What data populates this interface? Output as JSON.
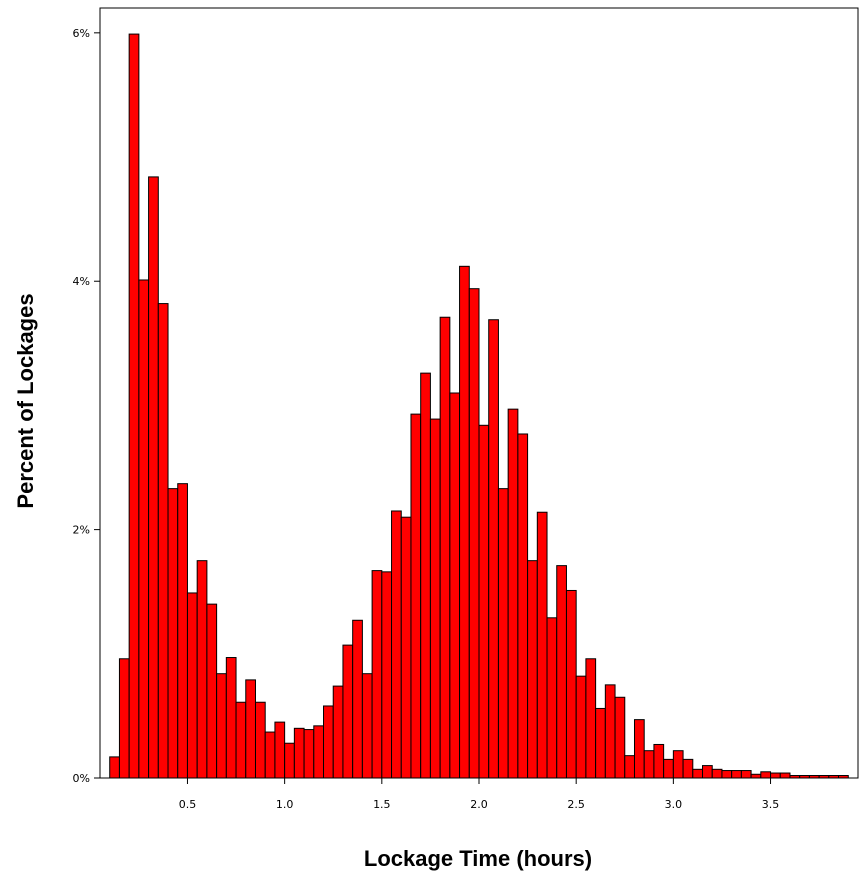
{
  "colors": {
    "bar_fill": "#ff0000",
    "bar_stroke": "#000000",
    "axis": "#000000",
    "background": "#ffffff"
  },
  "chart_data": {
    "type": "bar",
    "subtype": "histogram",
    "title": "",
    "xlabel": "Lockage Time (hours)",
    "ylabel": "Percent of Lockages",
    "xlim": [
      0.05,
      3.95
    ],
    "ylim": [
      0,
      6.2
    ],
    "grid": false,
    "legend": "none",
    "bin_width": 0.05,
    "x_ticks": [
      {
        "value": 0.5,
        "label": "0.5"
      },
      {
        "value": 1.0,
        "label": "1.0"
      },
      {
        "value": 1.5,
        "label": "1.5"
      },
      {
        "value": 2.0,
        "label": "2.0"
      },
      {
        "value": 2.5,
        "label": "2.5"
      },
      {
        "value": 3.0,
        "label": "3.0"
      },
      {
        "value": 3.5,
        "label": "3.5"
      }
    ],
    "y_ticks": [
      {
        "value": 0,
        "label": "0%"
      },
      {
        "value": 2,
        "label": "2%"
      },
      {
        "value": 4,
        "label": "4%"
      },
      {
        "value": 6,
        "label": "6%"
      }
    ],
    "bin_starts": [
      0.1,
      0.15,
      0.2,
      0.25,
      0.3,
      0.35,
      0.4,
      0.45,
      0.5,
      0.55,
      0.6,
      0.65,
      0.7,
      0.75,
      0.8,
      0.85,
      0.9,
      0.95,
      1.0,
      1.05,
      1.1,
      1.15,
      1.2,
      1.25,
      1.3,
      1.35,
      1.4,
      1.45,
      1.5,
      1.55,
      1.6,
      1.65,
      1.7,
      1.75,
      1.8,
      1.85,
      1.9,
      1.95,
      2.0,
      2.05,
      2.1,
      2.15,
      2.2,
      2.25,
      2.3,
      2.35,
      2.4,
      2.45,
      2.5,
      2.55,
      2.6,
      2.65,
      2.7,
      2.75,
      2.8,
      2.85,
      2.9,
      2.95,
      3.0,
      3.05,
      3.1,
      3.15,
      3.2,
      3.25,
      3.3,
      3.35,
      3.4,
      3.45,
      3.5,
      3.55,
      3.6,
      3.65,
      3.7,
      3.75,
      3.8,
      3.85
    ],
    "values": [
      0.17,
      0.96,
      5.99,
      4.01,
      4.84,
      3.82,
      2.33,
      2.37,
      1.49,
      1.75,
      1.4,
      0.84,
      0.97,
      0.61,
      0.79,
      0.61,
      0.37,
      0.45,
      0.28,
      0.4,
      0.39,
      0.42,
      0.58,
      0.74,
      1.07,
      1.27,
      0.84,
      1.67,
      1.66,
      2.15,
      2.1,
      2.93,
      3.26,
      2.89,
      3.71,
      3.1,
      4.12,
      3.94,
      2.84,
      3.69,
      2.33,
      2.97,
      2.77,
      1.75,
      2.14,
      1.29,
      1.71,
      1.51,
      0.82,
      0.96,
      0.56,
      0.75,
      0.65,
      0.18,
      0.47,
      0.22,
      0.27,
      0.15,
      0.22,
      0.15,
      0.07,
      0.1,
      0.07,
      0.06,
      0.06,
      0.06,
      0.03,
      0.05,
      0.04,
      0.04,
      0.02,
      0.02,
      0.02,
      0.02,
      0.02,
      0.02
    ]
  }
}
